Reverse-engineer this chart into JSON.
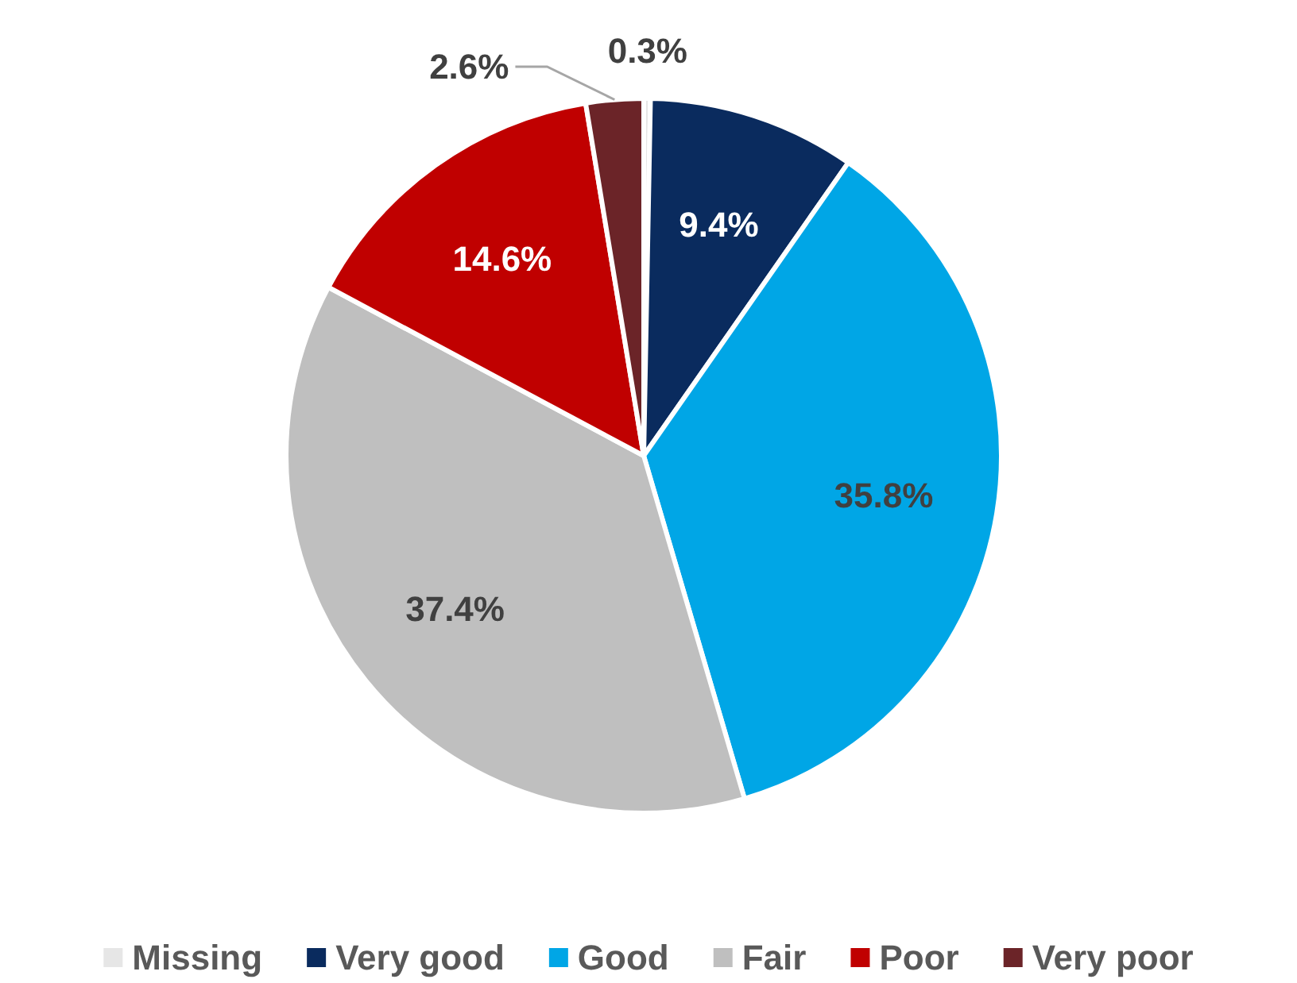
{
  "chart_data": {
    "type": "pie",
    "categories": [
      "Missing",
      "Very good",
      "Good",
      "Fair",
      "Poor",
      "Very poor"
    ],
    "values": [
      0.3,
      9.4,
      35.8,
      37.4,
      14.6,
      2.6
    ],
    "colors": [
      "#e6e6e6",
      "#0a2b5e",
      "#00a6e6",
      "#bfbfbf",
      "#c00000",
      "#6b2428"
    ],
    "value_labels": [
      "0.3%",
      "9.4%",
      "35.8%",
      "37.4%",
      "14.6%",
      "2.6%"
    ],
    "legend": "bottom"
  }
}
